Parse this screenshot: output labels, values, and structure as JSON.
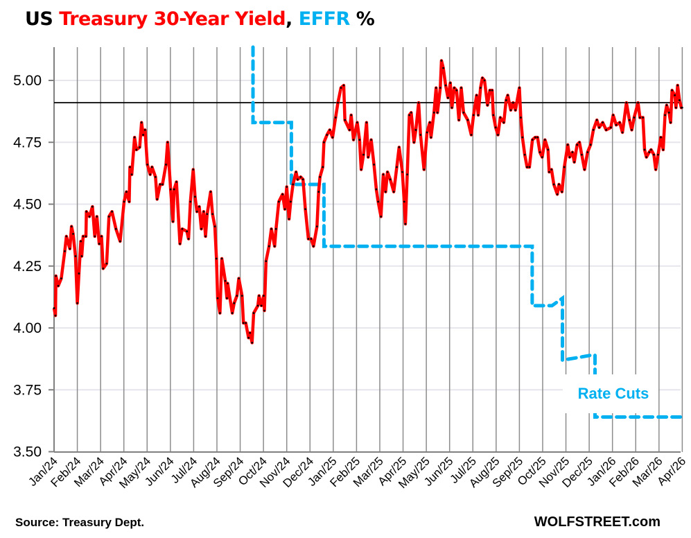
{
  "chart_data": {
    "type": "line",
    "title_parts": {
      "prefix": "US ",
      "series1": "Treasury 30-Year Yield",
      "sep": ", ",
      "series2": "EFFR",
      "suffix": " %"
    },
    "xlabel": "",
    "ylabel": "",
    "ylim": [
      3.5,
      5.134
    ],
    "yticks": [
      "3.50",
      "3.75",
      "4.00",
      "4.25",
      "4.50",
      "4.75",
      "5.00"
    ],
    "x_unit": "months since Jan 2024",
    "xticks": [
      "Jan/24",
      "Feb/24",
      "Mar/24",
      "Apr/24",
      "May/24",
      "Jun/24",
      "Jul/24",
      "Aug/24",
      "Sep/24",
      "Oct/24",
      "Nov/24",
      "Dec/24",
      "Jan/25",
      "Feb/25",
      "Mar/25",
      "Apr/25",
      "May/25",
      "Jun/25",
      "Jul/25",
      "Aug/25",
      "Sep/25",
      "Oct/25",
      "Nov/25",
      "Dec/25",
      "Jan/26",
      "Feb/26",
      "Mar/26",
      "Apr/26"
    ],
    "grid": "vertical monthly + horizontal",
    "reference_line": 4.91,
    "annotation": "Rate Cuts",
    "colors": {
      "yield": "#ff0000",
      "effr": "#00b0f0",
      "reference": "#000000",
      "markers": "#000000"
    },
    "series": [
      {
        "name": "Treasury 30-Year Yield",
        "points": [
          [
            0,
            4.08
          ],
          [
            0.06,
            4.05
          ],
          [
            0.08,
            4.21
          ],
          [
            0.18,
            4.17
          ],
          [
            0.31,
            4.2
          ],
          [
            0.46,
            4.31
          ],
          [
            0.53,
            4.37
          ],
          [
            0.68,
            4.32
          ],
          [
            0.75,
            4.41
          ],
          [
            0.82,
            4.38
          ],
          [
            0.92,
            4.29
          ],
          [
            1.0,
            4.1
          ],
          [
            1.07,
            4.22
          ],
          [
            1.15,
            4.35
          ],
          [
            1.19,
            4.29
          ],
          [
            1.25,
            4.37
          ],
          [
            1.37,
            4.37
          ],
          [
            1.39,
            4.47
          ],
          [
            1.52,
            4.45
          ],
          [
            1.65,
            4.49
          ],
          [
            1.75,
            4.37
          ],
          [
            1.84,
            4.45
          ],
          [
            1.94,
            4.34
          ],
          [
            2.04,
            4.37
          ],
          [
            2.11,
            4.24
          ],
          [
            2.26,
            4.26
          ],
          [
            2.36,
            4.45
          ],
          [
            2.49,
            4.47
          ],
          [
            2.66,
            4.4
          ],
          [
            2.84,
            4.35
          ],
          [
            3.01,
            4.51
          ],
          [
            3.11,
            4.55
          ],
          [
            3.23,
            4.51
          ],
          [
            3.26,
            4.65
          ],
          [
            3.34,
            4.62
          ],
          [
            3.46,
            4.77
          ],
          [
            3.54,
            4.72
          ],
          [
            3.68,
            4.73
          ],
          [
            3.76,
            4.83
          ],
          [
            3.83,
            4.78
          ],
          [
            3.91,
            4.8
          ],
          [
            4.01,
            4.66
          ],
          [
            4.13,
            4.62
          ],
          [
            4.21,
            4.65
          ],
          [
            4.36,
            4.61
          ],
          [
            4.43,
            4.52
          ],
          [
            4.56,
            4.58
          ],
          [
            4.66,
            4.58
          ],
          [
            4.81,
            4.66
          ],
          [
            4.88,
            4.75
          ],
          [
            5.01,
            4.56
          ],
          [
            5.11,
            4.43
          ],
          [
            5.16,
            4.56
          ],
          [
            5.26,
            4.59
          ],
          [
            5.41,
            4.34
          ],
          [
            5.51,
            4.4
          ],
          [
            5.71,
            4.39
          ],
          [
            5.78,
            4.36
          ],
          [
            5.86,
            4.51
          ],
          [
            5.98,
            4.64
          ],
          [
            6.06,
            4.53
          ],
          [
            6.14,
            4.47
          ],
          [
            6.24,
            4.49
          ],
          [
            6.33,
            4.4
          ],
          [
            6.43,
            4.47
          ],
          [
            6.51,
            4.37
          ],
          [
            6.58,
            4.46
          ],
          [
            6.73,
            4.55
          ],
          [
            6.81,
            4.46
          ],
          [
            6.91,
            4.41
          ],
          [
            6.98,
            4.28
          ],
          [
            7.03,
            4.12
          ],
          [
            7.13,
            4.06
          ],
          [
            7.21,
            4.28
          ],
          [
            7.36,
            4.19
          ],
          [
            7.43,
            4.12
          ],
          [
            7.46,
            4.18
          ],
          [
            7.66,
            4.06
          ],
          [
            7.74,
            4.1
          ],
          [
            7.86,
            4.13
          ],
          [
            7.94,
            4.2
          ],
          [
            8.08,
            4.13
          ],
          [
            8.14,
            4.02
          ],
          [
            8.24,
            4.02
          ],
          [
            8.36,
            3.96
          ],
          [
            8.42,
            3.98
          ],
          [
            8.51,
            3.94
          ],
          [
            8.58,
            4.06
          ],
          [
            8.76,
            4.09
          ],
          [
            8.81,
            4.13
          ],
          [
            8.91,
            4.09
          ],
          [
            9.01,
            4.13
          ],
          [
            9.04,
            4.07
          ],
          [
            9.11,
            4.27
          ],
          [
            9.24,
            4.33
          ],
          [
            9.34,
            4.4
          ],
          [
            9.48,
            4.33
          ],
          [
            9.54,
            4.4
          ],
          [
            9.66,
            4.51
          ],
          [
            9.82,
            4.54
          ],
          [
            9.92,
            4.48
          ],
          [
            10.0,
            4.57
          ],
          [
            10.1,
            4.44
          ],
          [
            10.17,
            4.51
          ],
          [
            10.27,
            4.58
          ],
          [
            10.4,
            4.63
          ],
          [
            10.47,
            4.6
          ],
          [
            10.6,
            4.61
          ],
          [
            10.7,
            4.6
          ],
          [
            10.8,
            4.48
          ],
          [
            10.93,
            4.36
          ],
          [
            11.05,
            4.36
          ],
          [
            11.15,
            4.33
          ],
          [
            11.3,
            4.41
          ],
          [
            11.37,
            4.55
          ],
          [
            11.43,
            4.61
          ],
          [
            11.55,
            4.65
          ],
          [
            11.6,
            4.75
          ],
          [
            11.73,
            4.78
          ],
          [
            11.85,
            4.8
          ],
          [
            11.97,
            4.77
          ],
          [
            12.1,
            4.85
          ],
          [
            12.2,
            4.91
          ],
          [
            12.33,
            4.97
          ],
          [
            12.45,
            4.98
          ],
          [
            12.5,
            4.84
          ],
          [
            12.7,
            4.8
          ],
          [
            12.77,
            4.86
          ],
          [
            12.87,
            4.76
          ],
          [
            13.03,
            4.83
          ],
          [
            13.13,
            4.76
          ],
          [
            13.2,
            4.64
          ],
          [
            13.3,
            4.7
          ],
          [
            13.43,
            4.83
          ],
          [
            13.5,
            4.69
          ],
          [
            13.63,
            4.76
          ],
          [
            13.75,
            4.66
          ],
          [
            13.85,
            4.56
          ],
          [
            13.93,
            4.51
          ],
          [
            14.05,
            4.45
          ],
          [
            14.15,
            4.62
          ],
          [
            14.25,
            4.55
          ],
          [
            14.33,
            4.63
          ],
          [
            14.45,
            4.6
          ],
          [
            14.6,
            4.55
          ],
          [
            14.73,
            4.65
          ],
          [
            14.83,
            4.73
          ],
          [
            14.97,
            4.63
          ],
          [
            15.05,
            4.51
          ],
          [
            15.1,
            4.42
          ],
          [
            15.18,
            4.62
          ],
          [
            15.27,
            4.86
          ],
          [
            15.35,
            4.87
          ],
          [
            15.47,
            4.75
          ],
          [
            15.55,
            4.8
          ],
          [
            15.67,
            4.91
          ],
          [
            15.75,
            4.78
          ],
          [
            15.9,
            4.64
          ],
          [
            16.03,
            4.79
          ],
          [
            16.15,
            4.83
          ],
          [
            16.2,
            4.77
          ],
          [
            16.33,
            4.87
          ],
          [
            16.42,
            4.97
          ],
          [
            16.48,
            4.87
          ],
          [
            16.6,
            4.97
          ],
          [
            16.65,
            5.08
          ],
          [
            16.73,
            5.05
          ],
          [
            16.83,
            4.98
          ],
          [
            16.93,
            4.93
          ],
          [
            17.03,
            4.99
          ],
          [
            17.1,
            4.89
          ],
          [
            17.2,
            4.97
          ],
          [
            17.3,
            4.96
          ],
          [
            17.4,
            4.84
          ],
          [
            17.5,
            4.97
          ],
          [
            17.6,
            4.87
          ],
          [
            17.78,
            4.84
          ],
          [
            17.93,
            4.78
          ],
          [
            18.03,
            4.86
          ],
          [
            18.16,
            4.94
          ],
          [
            18.23,
            4.86
          ],
          [
            18.33,
            4.97
          ],
          [
            18.41,
            5.01
          ],
          [
            18.5,
            5.0
          ],
          [
            18.63,
            4.9
          ],
          [
            18.73,
            4.96
          ],
          [
            18.83,
            4.96
          ],
          [
            18.88,
            4.86
          ],
          [
            18.98,
            4.81
          ],
          [
            19.08,
            4.78
          ],
          [
            19.18,
            4.85
          ],
          [
            19.33,
            4.83
          ],
          [
            19.43,
            4.92
          ],
          [
            19.5,
            4.94
          ],
          [
            19.63,
            4.88
          ],
          [
            19.73,
            4.91
          ],
          [
            19.83,
            4.88
          ],
          [
            20.0,
            4.97
          ],
          [
            20.06,
            4.85
          ],
          [
            20.13,
            4.77
          ],
          [
            20.23,
            4.7
          ],
          [
            20.33,
            4.65
          ],
          [
            20.43,
            4.65
          ],
          [
            20.56,
            4.76
          ],
          [
            20.68,
            4.77
          ],
          [
            20.78,
            4.77
          ],
          [
            20.88,
            4.71
          ],
          [
            20.98,
            4.69
          ],
          [
            21.1,
            4.76
          ],
          [
            21.23,
            4.72
          ],
          [
            21.28,
            4.63
          ],
          [
            21.38,
            4.64
          ],
          [
            21.48,
            4.58
          ],
          [
            21.63,
            4.54
          ],
          [
            21.7,
            4.58
          ],
          [
            21.83,
            4.55
          ],
          [
            21.93,
            4.65
          ],
          [
            22.08,
            4.74
          ],
          [
            22.16,
            4.69
          ],
          [
            22.28,
            4.71
          ],
          [
            22.36,
            4.67
          ],
          [
            22.48,
            4.74
          ],
          [
            22.58,
            4.75
          ],
          [
            22.68,
            4.7
          ],
          [
            22.8,
            4.64
          ],
          [
            22.93,
            4.71
          ],
          [
            23.06,
            4.74
          ],
          [
            23.18,
            4.8
          ],
          [
            23.33,
            4.84
          ],
          [
            23.43,
            4.81
          ],
          [
            23.58,
            4.83
          ],
          [
            23.73,
            4.8
          ],
          [
            23.93,
            4.81
          ],
          [
            24.03,
            4.86
          ],
          [
            24.16,
            4.82
          ],
          [
            24.31,
            4.83
          ],
          [
            24.43,
            4.79
          ],
          [
            24.6,
            4.91
          ],
          [
            24.73,
            4.84
          ],
          [
            24.83,
            4.8
          ],
          [
            24.93,
            4.85
          ],
          [
            25.1,
            4.91
          ],
          [
            25.18,
            4.85
          ],
          [
            25.31,
            4.85
          ],
          [
            25.38,
            4.72
          ],
          [
            25.46,
            4.69
          ],
          [
            25.58,
            4.71
          ],
          [
            25.66,
            4.72
          ],
          [
            25.78,
            4.7
          ],
          [
            25.86,
            4.64
          ],
          [
            25.96,
            4.7
          ],
          [
            26.08,
            4.77
          ],
          [
            26.18,
            4.72
          ],
          [
            26.26,
            4.86
          ],
          [
            26.33,
            4.9
          ],
          [
            26.43,
            4.87
          ],
          [
            26.5,
            4.83
          ],
          [
            26.56,
            4.96
          ],
          [
            26.68,
            4.94
          ],
          [
            26.73,
            4.89
          ],
          [
            26.8,
            4.98
          ],
          [
            26.88,
            4.92
          ],
          [
            26.96,
            4.89
          ],
          [
            27.0,
            4.89
          ]
        ]
      },
      {
        "name": "EFFR",
        "points": [
          [
            8.55,
            5.33
          ],
          [
            8.55,
            4.83
          ],
          [
            10.2,
            4.83
          ],
          [
            10.2,
            4.58
          ],
          [
            11.6,
            4.58
          ],
          [
            11.6,
            4.33
          ],
          [
            20.55,
            4.33
          ],
          [
            20.55,
            4.09
          ],
          [
            21.4,
            4.09
          ],
          [
            21.85,
            4.12
          ],
          [
            21.85,
            3.87
          ],
          [
            22.5,
            3.88
          ],
          [
            23.1,
            3.89
          ],
          [
            23.25,
            3.89
          ],
          [
            23.25,
            3.64
          ],
          [
            27.0,
            3.64
          ]
        ]
      }
    ]
  },
  "footer": {
    "source": "Source: Treasury Dept.",
    "brand": "WOLFSTREET.com"
  }
}
